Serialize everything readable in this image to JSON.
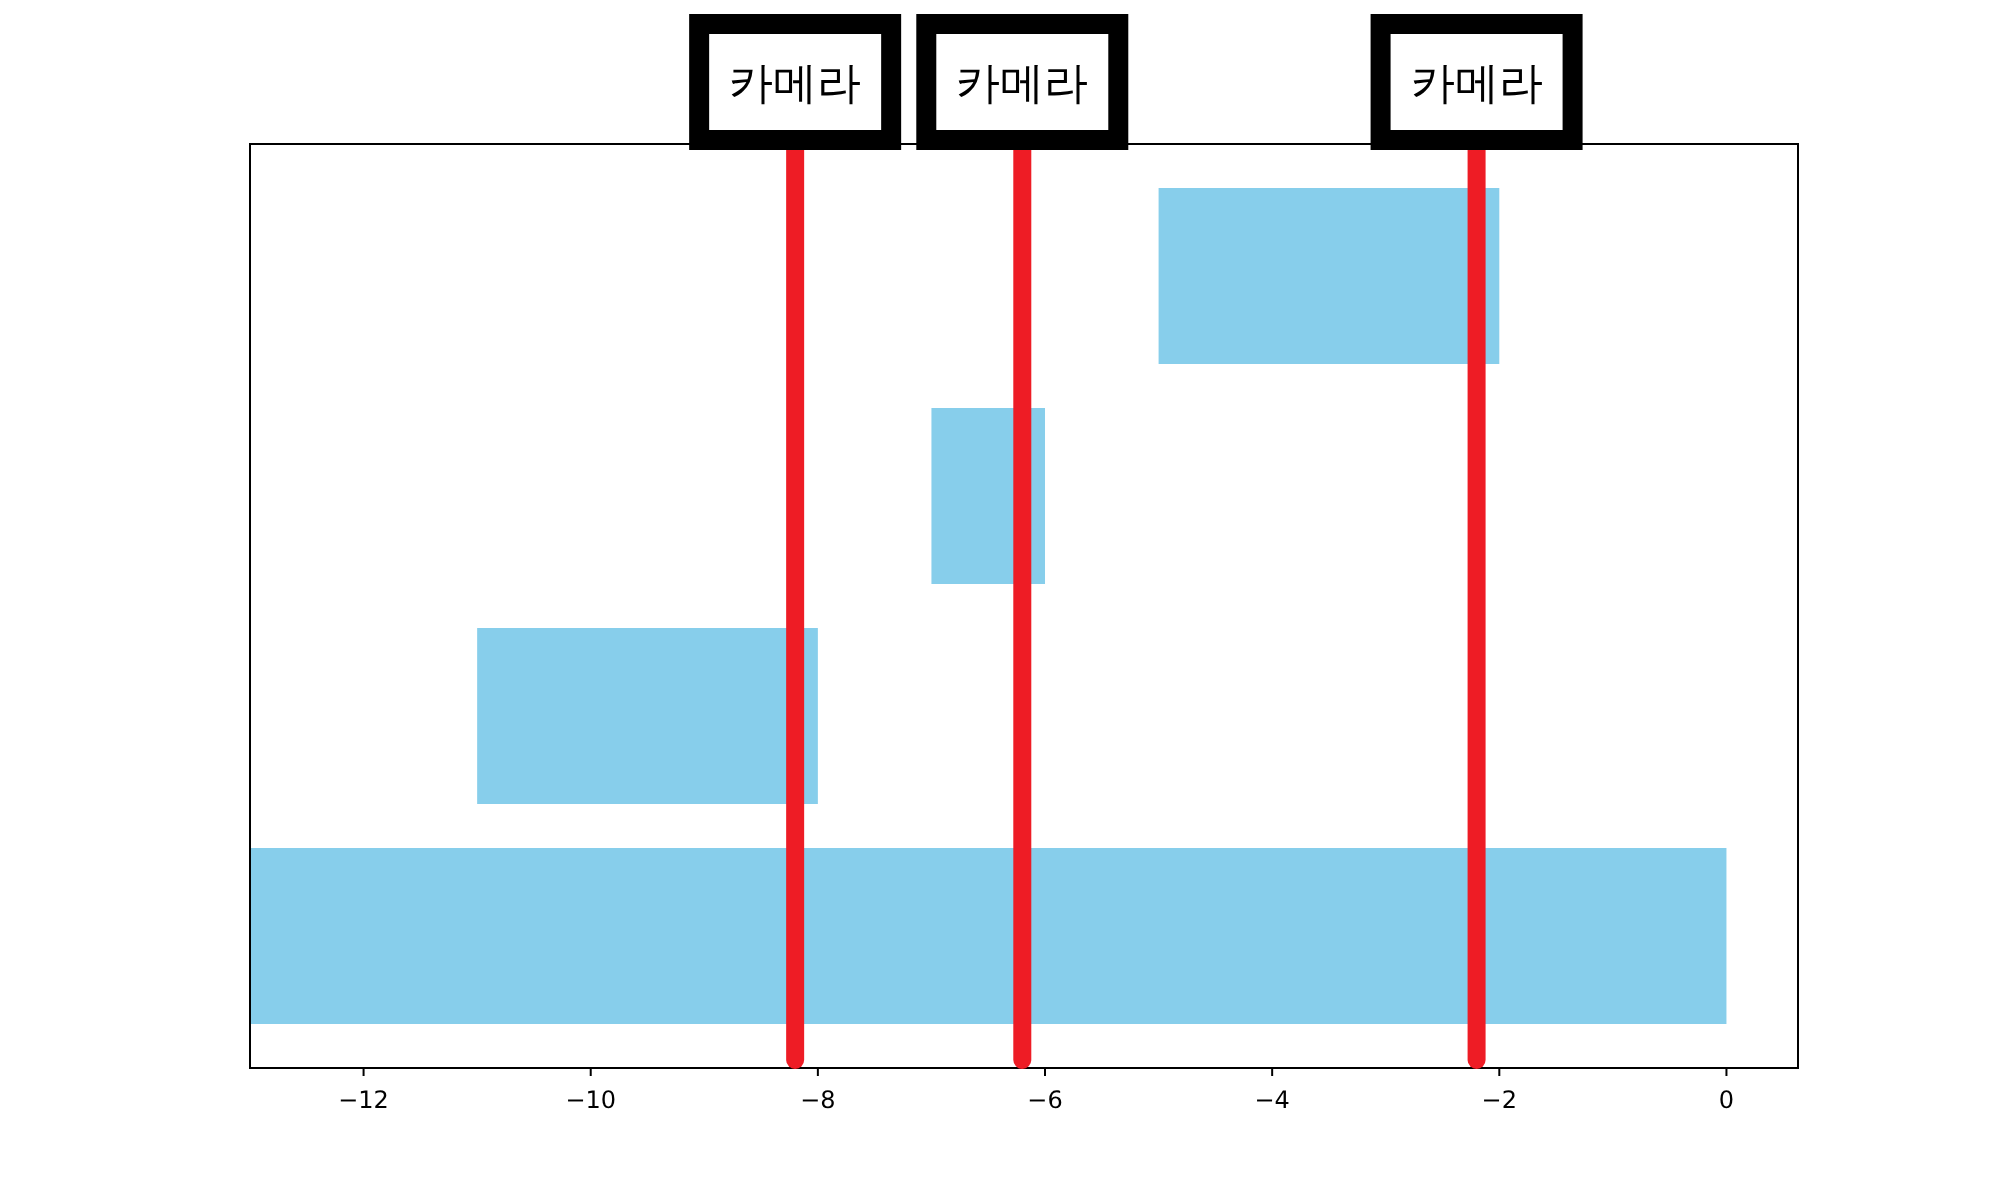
{
  "chart_data": {
    "type": "bar",
    "orientation": "horizontal",
    "categories": [
      null,
      null,
      null,
      null
    ],
    "base": [
      -5,
      -7,
      -11,
      -13
    ],
    "values": [
      3,
      1,
      3,
      13
    ],
    "color": "#87ceeb",
    "xlim": [
      -13,
      0.63
    ],
    "xticks": [
      {
        "value": -12,
        "label": "−12"
      },
      {
        "value": -10,
        "label": "−10"
      },
      {
        "value": -8,
        "label": "−8"
      },
      {
        "value": -6,
        "label": "−6"
      },
      {
        "value": -4,
        "label": "−4"
      },
      {
        "value": -2,
        "label": "−2"
      },
      0
    ],
    "ref_lines": [
      {
        "axis": "x",
        "value": -8.2,
        "label": "카메라",
        "color": "#ee1c25"
      },
      {
        "axis": "x",
        "value": -6.2,
        "label": "카메라",
        "color": "#ee1c25"
      },
      {
        "axis": "x",
        "value": -2.2,
        "label": "카메라",
        "color": "#ee1c25"
      }
    ],
    "grid": false
  }
}
